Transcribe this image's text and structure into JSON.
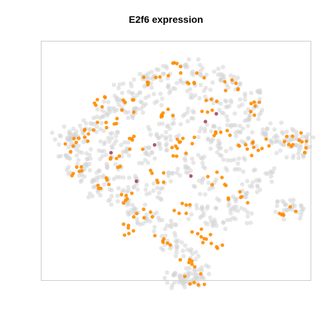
{
  "chart_data": {
    "type": "scatter",
    "title": "E2f6 expression",
    "xlabel": "",
    "ylabel": "",
    "grid": false,
    "legend": "none",
    "axes_visible": false,
    "colors": {
      "background_cells": "#d3d3d3",
      "expressing_cells": "#ff8c00",
      "high_expressing_cells": "#a03c5a",
      "frame": "#cccccc"
    },
    "series": [
      {
        "role": "background",
        "points": [
          [
            -1.55,
            0.4
          ],
          [
            -1.48,
            0.15
          ],
          [
            -1.42,
            0.55
          ],
          [
            -1.35,
            -0.1
          ],
          [
            -1.3,
            0.3
          ],
          [
            -1.22,
            -0.35
          ],
          [
            -1.18,
            0.7
          ],
          [
            -1.1,
            0.05
          ],
          [
            -1.05,
            -0.55
          ],
          [
            -1.0,
            0.85
          ],
          [
            -0.95,
            0.45
          ],
          [
            -0.9,
            -0.2
          ],
          [
            -0.85,
            1.1
          ],
          [
            -0.8,
            -0.7
          ],
          [
            -0.75,
            0.2
          ],
          [
            -0.7,
            1.35
          ],
          [
            -0.65,
            -0.45
          ],
          [
            -0.6,
            0.9
          ],
          [
            -0.55,
            -0.9
          ],
          [
            -0.5,
            1.55
          ],
          [
            -0.45,
            0.1
          ],
          [
            -0.4,
            -1.15
          ],
          [
            -0.35,
            1.2
          ],
          [
            -0.3,
            -0.6
          ],
          [
            -0.25,
            0.6
          ],
          [
            -0.2,
            1.7
          ],
          [
            -0.15,
            -1.3
          ],
          [
            -0.1,
            0.35
          ],
          [
            -0.05,
            -1.6
          ],
          [
            0.0,
            1.45
          ],
          [
            0.05,
            -0.25
          ],
          [
            0.1,
            0.85
          ],
          [
            0.15,
            -1.75
          ],
          [
            0.2,
            1.8
          ],
          [
            0.25,
            0.0
          ],
          [
            0.3,
            -1.0
          ],
          [
            0.35,
            1.3
          ],
          [
            0.4,
            -0.5
          ],
          [
            0.45,
            0.55
          ],
          [
            0.5,
            1.65
          ],
          [
            0.55,
            -1.2
          ],
          [
            0.6,
            0.25
          ],
          [
            0.65,
            1.0
          ],
          [
            0.7,
            -0.8
          ],
          [
            0.75,
            1.5
          ],
          [
            0.8,
            -0.1
          ],
          [
            0.85,
            0.7
          ],
          [
            0.9,
            -1.05
          ],
          [
            0.95,
            0.4
          ],
          [
            1.0,
            1.2
          ],
          [
            1.05,
            -0.55
          ],
          [
            1.1,
            0.9
          ],
          [
            1.2,
            -0.3
          ],
          [
            1.3,
            0.6
          ],
          [
            1.45,
            0.3
          ],
          [
            1.55,
            0.45
          ],
          [
            1.65,
            0.15
          ],
          [
            1.75,
            0.35
          ],
          [
            1.5,
            -0.9
          ],
          [
            1.6,
            -1.0
          ],
          [
            0.1,
            -2.2
          ],
          [
            0.2,
            -2.35
          ],
          [
            0.3,
            -2.15
          ],
          [
            0.0,
            -2.3
          ]
        ]
      },
      {
        "role": "expressing",
        "points": [
          [
            -1.45,
            0.3
          ],
          [
            -1.3,
            -0.2
          ],
          [
            -1.2,
            0.5
          ],
          [
            -1.05,
            -0.45
          ],
          [
            -0.95,
            0.7
          ],
          [
            -0.85,
            0.0
          ],
          [
            -0.75,
            -0.75
          ],
          [
            -0.65,
            1.05
          ],
          [
            -0.55,
            0.35
          ],
          [
            -0.45,
            -1.0
          ],
          [
            -0.35,
            1.5
          ],
          [
            -0.25,
            -0.3
          ],
          [
            -0.15,
            0.9
          ],
          [
            -0.05,
            1.75
          ],
          [
            0.05,
            -0.9
          ],
          [
            0.15,
            0.45
          ],
          [
            0.25,
            1.6
          ],
          [
            0.35,
            -1.4
          ],
          [
            0.45,
            1.05
          ],
          [
            0.55,
            -0.35
          ],
          [
            0.65,
            0.6
          ],
          [
            0.75,
            1.45
          ],
          [
            0.85,
            -0.7
          ],
          [
            0.95,
            0.2
          ],
          [
            1.05,
            1.0
          ],
          [
            1.15,
            0.3
          ],
          [
            1.6,
            0.4
          ],
          [
            1.7,
            0.25
          ],
          [
            1.55,
            -0.95
          ],
          [
            0.25,
            -2.3
          ],
          [
            0.15,
            -1.95
          ],
          [
            -0.6,
            -1.3
          ],
          [
            -0.2,
            -1.55
          ],
          [
            0.5,
            -1.6
          ],
          [
            -1.0,
            1.15
          ],
          [
            0.0,
            0.15
          ]
        ]
      },
      {
        "role": "high_expressing",
        "points": [
          [
            0.4,
            0.75
          ],
          [
            -0.3,
            0.3
          ],
          [
            0.55,
            0.9
          ],
          [
            -0.55,
            -0.4
          ],
          [
            0.2,
            -0.3
          ],
          [
            -0.9,
            0.15
          ]
        ]
      }
    ]
  }
}
